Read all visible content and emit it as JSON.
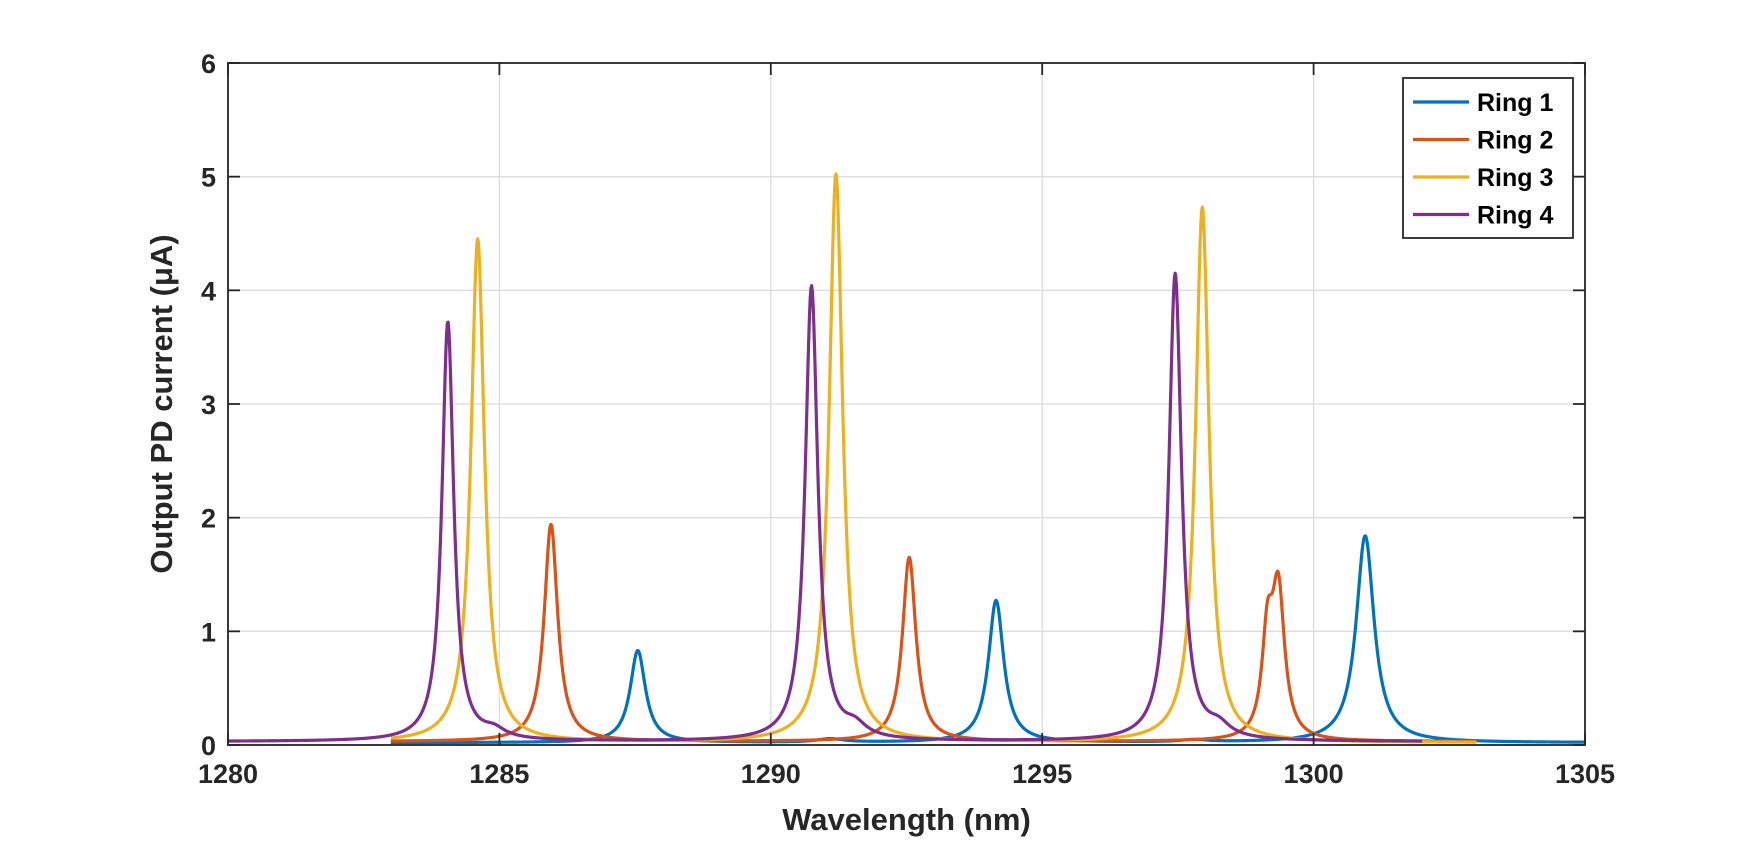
{
  "chart_data": {
    "type": "line",
    "xlabel": "Wavelength (nm)",
    "ylabel": "Output PD current (μA)",
    "xlim": [
      1280,
      1305
    ],
    "ylim": [
      0,
      6
    ],
    "xticks": [
      "1280",
      "1285",
      "1290",
      "1295",
      "1300",
      "1305"
    ],
    "yticks": [
      "0",
      "1",
      "2",
      "3",
      "4",
      "5",
      "6"
    ],
    "grid": true,
    "legend_position": "top-right",
    "series": [
      {
        "name": "Ring 1",
        "color": "#0072BD",
        "range": [
          1283.0,
          1305.0
        ],
        "baseline": 0.02,
        "peaks": [
          {
            "x": 1287.55,
            "y": 0.83,
            "w": 0.17
          },
          {
            "x": 1294.15,
            "y": 1.27,
            "w": 0.17
          },
          {
            "x": 1300.95,
            "y": 1.84,
            "w": 0.2
          },
          {
            "x": 1291.1,
            "y": 0.05,
            "w": 0.3
          },
          {
            "x": 1297.8,
            "y": 0.04,
            "w": 0.3
          }
        ]
      },
      {
        "name": "Ring 2",
        "color": "#D95319",
        "range": [
          1283.0,
          1303.0
        ],
        "baseline": 0.03,
        "peaks": [
          {
            "x": 1285.95,
            "y": 1.94,
            "w": 0.15
          },
          {
            "x": 1292.55,
            "y": 1.65,
            "w": 0.15
          },
          {
            "x": 1299.35,
            "y": 1.3,
            "w": 0.14
          },
          {
            "x": 1299.15,
            "y": 0.85,
            "w": 0.12
          }
        ]
      },
      {
        "name": "Ring 3",
        "color": "#EDB120",
        "range": [
          1283.0,
          1303.0
        ],
        "baseline": 0.02,
        "peaks": [
          {
            "x": 1284.6,
            "y": 4.45,
            "w": 0.15
          },
          {
            "x": 1291.2,
            "y": 5.02,
            "w": 0.15
          },
          {
            "x": 1297.95,
            "y": 4.73,
            "w": 0.15
          }
        ]
      },
      {
        "name": "Ring 4",
        "color": "#7E2F8E",
        "range": [
          1280.0,
          1302.0
        ],
        "baseline": 0.03,
        "peaks": [
          {
            "x": 1284.05,
            "y": 3.72,
            "w": 0.13
          },
          {
            "x": 1290.75,
            "y": 4.03,
            "w": 0.14
          },
          {
            "x": 1297.45,
            "y": 4.14,
            "w": 0.14
          },
          {
            "x": 1284.9,
            "y": 0.1,
            "w": 0.25
          },
          {
            "x": 1291.55,
            "y": 0.13,
            "w": 0.25
          },
          {
            "x": 1298.25,
            "y": 0.13,
            "w": 0.25
          }
        ]
      }
    ]
  }
}
